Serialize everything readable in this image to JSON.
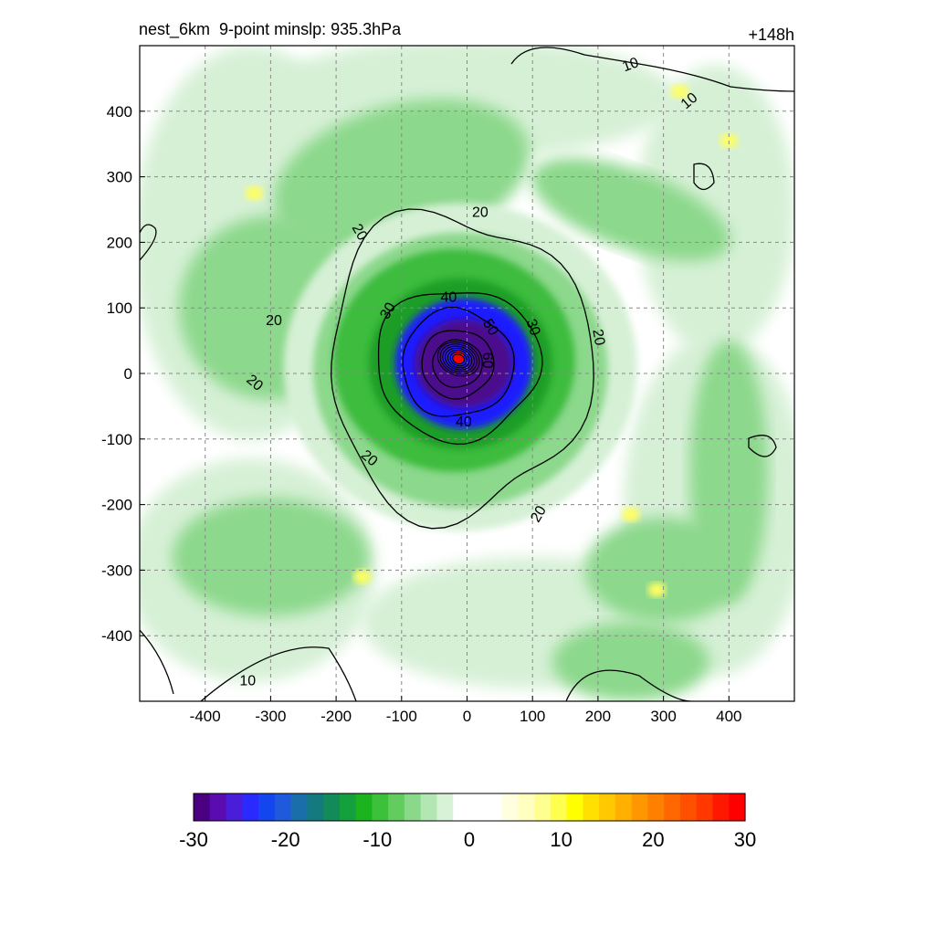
{
  "header": {
    "left_title": "nest_6km  9-point minslp: 935.3hPa",
    "right_title": "+148h"
  },
  "chart_data": {
    "type": "heatmap",
    "title": "",
    "xlabel": "",
    "ylabel": "",
    "xlim": [
      -500,
      500
    ],
    "ylim": [
      -500,
      500
    ],
    "x_ticks": [
      -400,
      -300,
      -200,
      -100,
      0,
      100,
      200,
      300,
      400
    ],
    "y_ticks": [
      -400,
      -300,
      -200,
      -100,
      0,
      100,
      200,
      300,
      400
    ],
    "grid": true,
    "grid_style": "dashed",
    "colorbar": {
      "orientation": "horizontal",
      "placement": "bottom",
      "ticks": [
        -30,
        -20,
        -10,
        0,
        10,
        20,
        30
      ],
      "min": -30,
      "max": 30,
      "colors": [
        "#4b0082",
        "#5a0cb0",
        "#4a1ed8",
        "#2a2aff",
        "#1446f0",
        "#1f5adc",
        "#1a6eaa",
        "#147a80",
        "#128a5a",
        "#14a03c",
        "#1bb41e",
        "#3ec13a",
        "#62cc5e",
        "#8ad98a",
        "#b2e6b2",
        "#d8f2d8",
        "#ffffff",
        "#ffffff",
        "#ffffff",
        "#ffffe0",
        "#ffffc0",
        "#ffff90",
        "#ffff50",
        "#ffff00",
        "#ffe000",
        "#ffc800",
        "#ffb000",
        "#ff9800",
        "#ff8000",
        "#ff6800",
        "#ff5000",
        "#ff3800",
        "#ff1800",
        "#ff0000"
      ]
    },
    "contours": [
      {
        "label": "10",
        "value": 10
      },
      {
        "label": "20",
        "value": 20
      },
      {
        "label": "30",
        "value": 30
      },
      {
        "label": "40",
        "value": 40
      },
      {
        "label": "50",
        "value": 50
      },
      {
        "label": "60",
        "value": 60
      }
    ],
    "field_colors": {
      "purple": "#4b0a8c",
      "blue": "#1a1aff",
      "dark_green": "#1e9e28",
      "green": "#3cbc3c",
      "light_green": "#8cd88c",
      "pale_green": "#d6f0d6",
      "yellow": "#ffff60",
      "red": "#ff0000"
    }
  }
}
